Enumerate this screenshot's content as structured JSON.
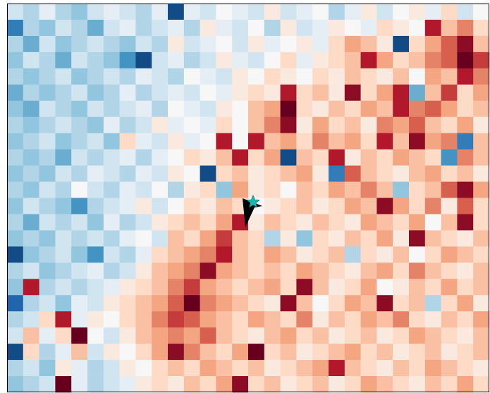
{
  "chart_data": {
    "type": "heatmap",
    "colormap": "RdBu_r",
    "zlim": [
      -1,
      1
    ],
    "z": [
      [
        -0.2,
        -0.3,
        -0.1,
        -0.3,
        -0.4,
        -0.2,
        -0.1,
        -0.2,
        -0.3,
        -0.1,
        -0.9,
        -0.1,
        -0.2,
        0.0,
        -0.1,
        -0.2,
        0.1,
        -0.2,
        -0.1,
        0.0,
        -0.3,
        -0.1,
        0.1,
        -0.2,
        0.0,
        0.1,
        -0.1,
        0.2,
        -0.2,
        0.0
      ],
      [
        -0.7,
        -0.3,
        -0.4,
        -0.2,
        -0.3,
        -0.5,
        -0.2,
        -0.1,
        -0.3,
        -0.2,
        -0.1,
        -0.3,
        0.1,
        -0.1,
        -0.2,
        0.0,
        -0.3,
        0.1,
        -0.2,
        -0.1,
        0.1,
        0.0,
        -0.1,
        0.2,
        0.1,
        0.0,
        0.8,
        0.3,
        0.5,
        0.2
      ],
      [
        -0.3,
        -0.5,
        -0.2,
        -0.4,
        -0.3,
        -0.2,
        -0.3,
        -0.4,
        -0.2,
        -0.3,
        0.1,
        -0.2,
        -0.1,
        0.0,
        -0.2,
        0.1,
        -0.1,
        0.0,
        0.1,
        -0.1,
        0.2,
        0.4,
        0.3,
        0.1,
        -0.9,
        0.2,
        0.4,
        0.6,
        0.9,
        0.3
      ],
      [
        -0.4,
        -0.2,
        -0.3,
        -0.5,
        -0.2,
        -0.3,
        -0.4,
        -0.6,
        -0.9,
        -0.2,
        -0.1,
        -0.3,
        -0.2,
        0.1,
        -0.1,
        -0.2,
        0.0,
        0.2,
        -0.1,
        0.1,
        0.2,
        0.3,
        0.8,
        0.4,
        0.2,
        0.3,
        0.5,
        0.6,
        1.0,
        0.7
      ],
      [
        -0.3,
        -0.4,
        -0.3,
        -0.2,
        -0.4,
        -0.3,
        -0.2,
        -0.3,
        -0.1,
        -0.2,
        -0.3,
        0.0,
        -0.1,
        -0.2,
        0.1,
        0.0,
        0.2,
        0.1,
        0.0,
        0.2,
        0.1,
        0.3,
        0.2,
        0.1,
        0.3,
        0.0,
        0.4,
        0.3,
        0.8,
        0.5
      ],
      [
        -0.5,
        -0.3,
        -0.4,
        -0.3,
        -0.2,
        -0.4,
        -0.3,
        -0.1,
        -0.3,
        -0.2,
        -0.1,
        -0.2,
        0.0,
        -0.1,
        0.1,
        0.2,
        0.1,
        0.8,
        0.2,
        0.3,
        0.1,
        0.9,
        0.2,
        0.4,
        0.8,
        -0.5,
        0.3,
        0.7,
        0.2,
        0.4
      ],
      [
        -0.4,
        -0.5,
        -0.2,
        -0.3,
        -0.4,
        -0.2,
        -0.3,
        -0.2,
        -0.1,
        -0.3,
        0.0,
        -0.1,
        -0.2,
        0.1,
        0.0,
        0.3,
        0.4,
        1.0,
        0.2,
        0.1,
        0.3,
        0.2,
        0.4,
        0.3,
        0.8,
        0.5,
        0.6,
        0.4,
        0.2,
        0.3
      ],
      [
        -0.3,
        -0.4,
        -0.3,
        -0.2,
        -0.3,
        -0.4,
        -0.1,
        -0.3,
        -0.2,
        0.1,
        -0.1,
        0.0,
        -0.1,
        0.2,
        0.0,
        0.3,
        0.5,
        0.9,
        0.1,
        0.4,
        0.2,
        0.3,
        0.1,
        0.5,
        0.4,
        0.6,
        0.3,
        0.2,
        0.4,
        0.1
      ],
      [
        -0.4,
        -0.3,
        -0.2,
        -0.4,
        -0.3,
        -0.2,
        -0.4,
        0.2,
        -0.1,
        -0.2,
        0.1,
        -0.1,
        0.0,
        0.8,
        0.0,
        0.8,
        0.3,
        0.4,
        0.2,
        0.5,
        0.3,
        0.4,
        0.2,
        0.8,
        0.3,
        0.9,
        0.4,
        0.5,
        -0.7,
        0.3
      ],
      [
        -0.3,
        -0.4,
        -0.3,
        -0.5,
        -0.2,
        -0.3,
        -0.2,
        -0.1,
        -0.3,
        -0.1,
        0.0,
        0.2,
        0.1,
        0.3,
        0.8,
        0.2,
        0.4,
        -0.9,
        0.3,
        0.2,
        0.8,
        0.1,
        0.3,
        0.2,
        0.4,
        0.3,
        0.2,
        -0.6,
        0.5,
        0.3
      ],
      [
        -0.4,
        -0.3,
        -0.4,
        -0.2,
        -0.3,
        -0.1,
        -0.2,
        -0.3,
        -0.1,
        -0.2,
        0.1,
        0.0,
        -0.9,
        0.2,
        0.3,
        0.1,
        0.2,
        0.3,
        0.4,
        0.1,
        -0.7,
        0.6,
        0.3,
        0.2,
        0.1,
        0.3,
        0.4,
        0.2,
        0.3,
        0.1
      ],
      [
        -0.3,
        -0.4,
        -0.2,
        -0.3,
        0.0,
        -0.2,
        -0.3,
        -0.1,
        -0.2,
        0.0,
        -0.3,
        0.1,
        0.2,
        -0.4,
        0.4,
        0.1,
        0.2,
        0.0,
        0.3,
        0.2,
        0.4,
        0.3,
        0.5,
        0.3,
        -0.4,
        0.2,
        0.3,
        0.6,
        0.9,
        0.4
      ],
      [
        -0.4,
        -0.2,
        -0.3,
        -0.4,
        -0.6,
        -0.3,
        -0.2,
        -0.1,
        0.1,
        -0.2,
        0.0,
        0.2,
        0.1,
        0.3,
        0.2,
        0.0,
        0.1,
        0.2,
        0.3,
        0.1,
        0.2,
        0.4,
        0.3,
        0.9,
        0.4,
        0.2,
        0.5,
        0.1,
        0.6,
        0.2
      ],
      [
        -0.3,
        -0.5,
        -0.2,
        -0.3,
        -0.2,
        -0.4,
        -0.1,
        -0.3,
        -0.2,
        0.1,
        0.2,
        0.3,
        0.2,
        0.4,
        0.8,
        0.1,
        0.3,
        0.2,
        0.1,
        0.3,
        0.2,
        0.1,
        0.4,
        0.3,
        0.2,
        0.4,
        0.0,
        0.3,
        0.9,
        0.2
      ],
      [
        -0.4,
        -0.3,
        -0.4,
        -0.2,
        -0.3,
        -0.2,
        -0.3,
        -0.1,
        0.0,
        -0.2,
        0.3,
        0.2,
        0.4,
        0.7,
        0.3,
        0.2,
        -0.3,
        0.1,
        -0.4,
        0.2,
        0.1,
        0.3,
        0.2,
        0.4,
        0.1,
        0.9,
        0.3,
        0.2,
        0.1,
        0.3
      ],
      [
        -0.9,
        -0.4,
        -0.3,
        -0.2,
        -0.4,
        -0.6,
        -0.2,
        -0.3,
        -0.1,
        0.2,
        0.3,
        0.4,
        0.5,
        0.8,
        0.3,
        0.2,
        0.4,
        0.3,
        0.1,
        0.2,
        0.3,
        -0.3,
        0.2,
        0.1,
        0.3,
        0.0,
        0.2,
        0.4,
        0.3,
        0.2
      ],
      [
        -0.3,
        -0.2,
        -0.4,
        -0.3,
        -0.2,
        -0.1,
        -0.3,
        -0.2,
        0.1,
        0.3,
        0.4,
        0.5,
        0.9,
        0.4,
        0.3,
        0.2,
        0.3,
        0.2,
        0.4,
        0.3,
        0.2,
        0.1,
        0.3,
        0.4,
        0.2,
        0.5,
        0.3,
        0.2,
        0.1,
        0.3
      ],
      [
        -0.4,
        0.8,
        -0.3,
        -0.2,
        -0.3,
        -0.2,
        -0.1,
        0.1,
        0.2,
        0.3,
        0.5,
        0.7,
        0.4,
        0.3,
        0.2,
        0.3,
        0.4,
        0.2,
        0.9,
        0.3,
        0.1,
        0.2,
        0.4,
        0.0,
        0.1,
        0.3,
        0.2,
        0.4,
        0.2,
        0.3
      ],
      [
        -0.8,
        -0.3,
        -0.2,
        -0.4,
        -0.1,
        -0.2,
        0.1,
        0.2,
        0.3,
        0.4,
        0.6,
        1.0,
        0.5,
        0.4,
        0.3,
        0.2,
        0.1,
        0.9,
        0.3,
        0.0,
        0.2,
        0.4,
        0.3,
        0.9,
        0.2,
        0.3,
        -0.3,
        0.2,
        0.4,
        0.1
      ],
      [
        -0.3,
        -0.2,
        0.2,
        0.8,
        -0.1,
        0.1,
        0.0,
        0.2,
        0.3,
        0.5,
        0.7,
        0.6,
        0.4,
        0.3,
        0.2,
        0.4,
        0.3,
        0.2,
        0.5,
        0.1,
        0.3,
        0.2,
        0.4,
        0.3,
        0.5,
        0.2,
        0.1,
        0.3,
        0.2,
        0.4
      ],
      [
        -0.2,
        0.3,
        -0.1,
        0.2,
        1.0,
        0.0,
        -0.2,
        0.1,
        0.3,
        0.4,
        0.5,
        0.4,
        0.6,
        0.3,
        0.2,
        0.1,
        0.3,
        0.4,
        0.2,
        0.3,
        0.1,
        0.2,
        0.3,
        0.1,
        0.2,
        0.4,
        0.3,
        0.2,
        0.1,
        0.3
      ],
      [
        -0.9,
        0.2,
        -0.3,
        -0.1,
        0.3,
        -0.2,
        0.1,
        0.0,
        0.2,
        0.4,
        0.9,
        0.5,
        0.3,
        0.2,
        0.4,
        1.0,
        0.2,
        0.3,
        0.1,
        0.2,
        0.3,
        0.4,
        0.2,
        0.3,
        0.1,
        0.2,
        0.3,
        0.1,
        0.2,
        0.3
      ],
      [
        -0.3,
        -0.2,
        -0.4,
        0.1,
        -0.1,
        -0.3,
        -0.2,
        0.1,
        0.0,
        0.2,
        0.3,
        0.2,
        0.4,
        0.3,
        0.2,
        0.3,
        0.1,
        0.2,
        0.3,
        0.4,
        0.8,
        0.3,
        0.2,
        0.1,
        0.3,
        0.2,
        0.4,
        0.3,
        0.2,
        0.1
      ],
      [
        -0.4,
        -0.3,
        -0.2,
        1.0,
        -0.1,
        -0.3,
        -0.2,
        -0.1,
        0.1,
        0.2,
        0.1,
        0.3,
        0.2,
        0.4,
        0.9,
        0.2,
        0.3,
        0.1,
        0.2,
        0.3,
        0.1,
        0.2,
        0.4,
        0.3,
        0.2,
        0.1,
        0.3,
        0.2,
        0.4,
        0.2
      ]
    ]
  }
}
